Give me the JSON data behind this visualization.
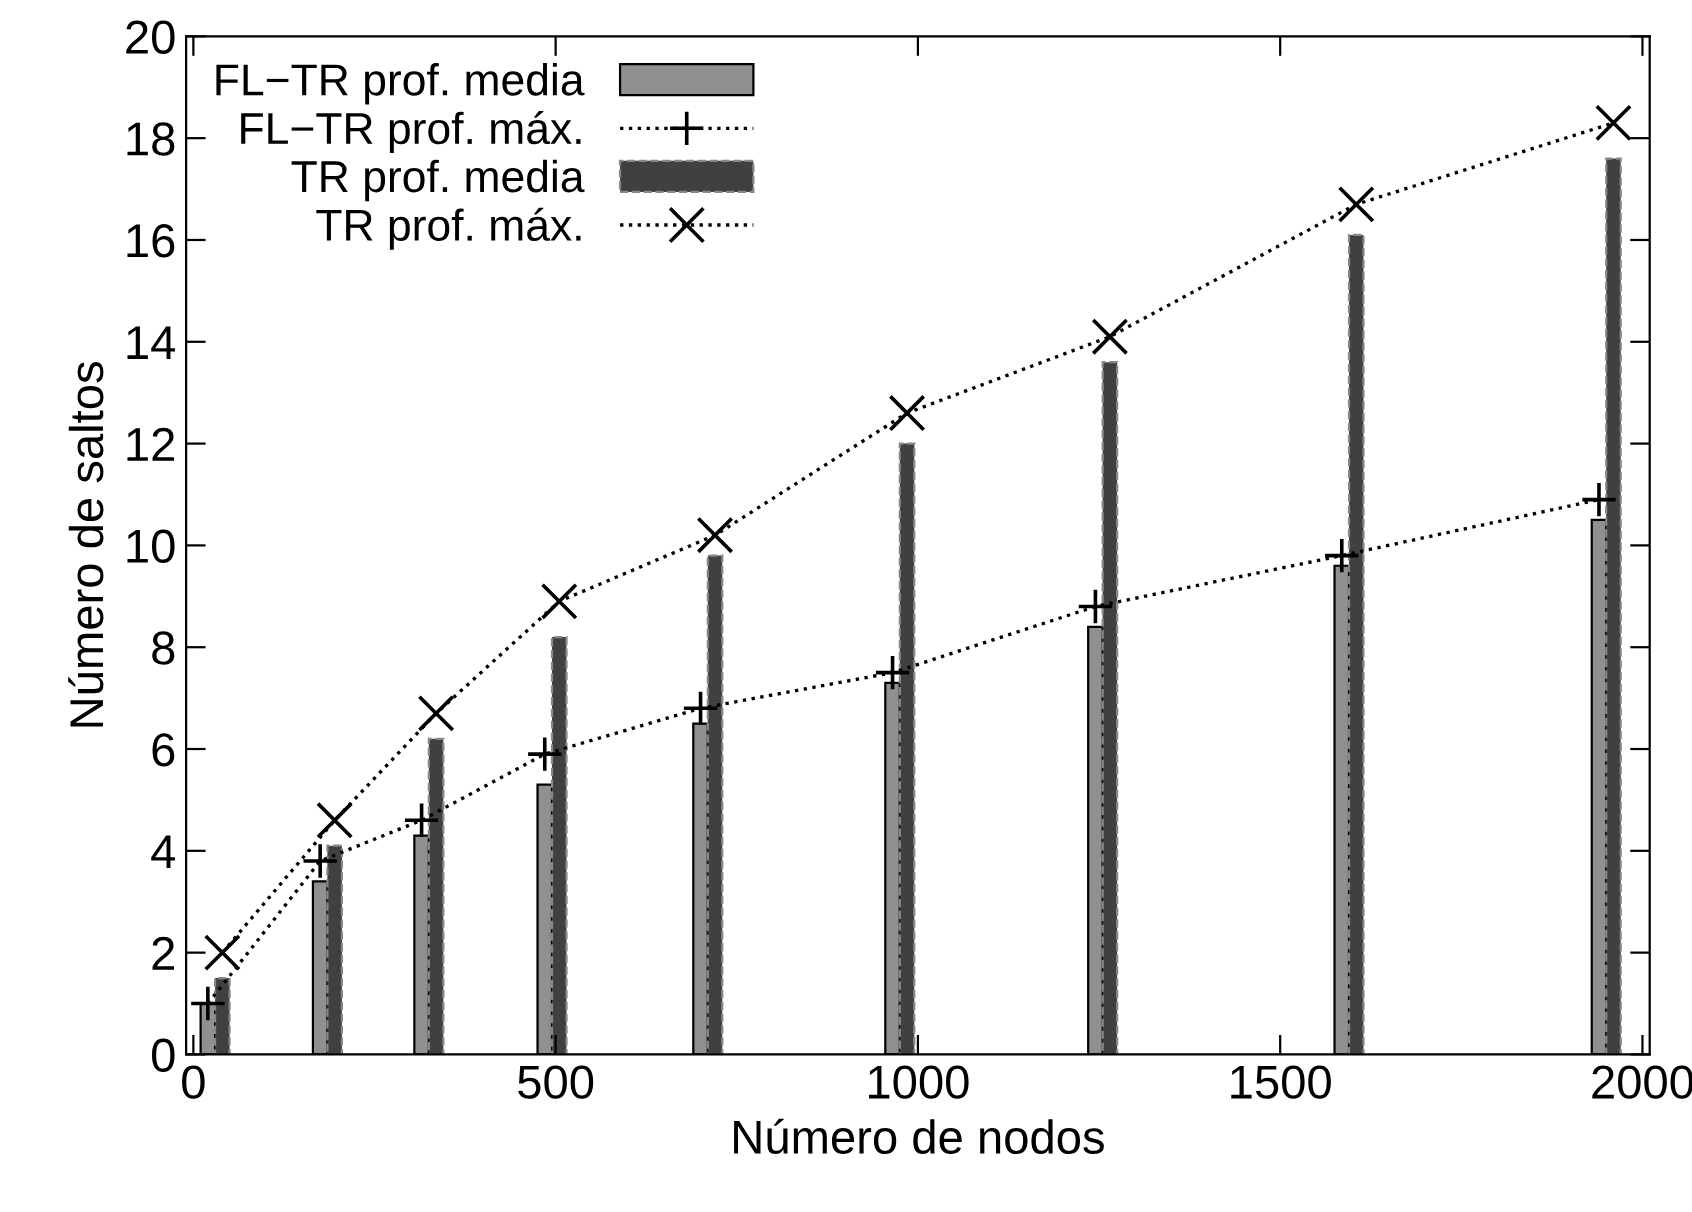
{
  "chart_data": {
    "type": "bar",
    "xlabel": "Número de nodos",
    "ylabel": "Número de saltos",
    "xlim": [
      -10,
      2010
    ],
    "ylim": [
      0,
      20
    ],
    "xticks": [
      0,
      500,
      1000,
      1500,
      2000
    ],
    "yticks": [
      0,
      2,
      4,
      6,
      8,
      10,
      12,
      14,
      16,
      18,
      20
    ],
    "grid": false,
    "legend": "top left",
    "series": [
      {
        "name": "FL−TR prof. media",
        "color": "#909090",
        "x": [
          20,
          175,
          315,
          485,
          700,
          965,
          1245,
          1585,
          1940
        ],
        "values": [
          1.0,
          3.4,
          4.3,
          5.3,
          6.5,
          7.3,
          8.4,
          9.6,
          10.5
        ]
      },
      {
        "name": "FL−TR prof. máx.",
        "type": "line",
        "color": "#000000",
        "marker": "cross",
        "line_style": "dotted",
        "x": [
          20,
          175,
          315,
          485,
          700,
          965,
          1245,
          1585,
          1940
        ],
        "values": [
          1.0,
          3.8,
          4.6,
          5.9,
          6.8,
          7.5,
          8.8,
          9.8,
          10.9
        ]
      },
      {
        "name": "TR prof. media",
        "color": "#404040",
        "x": [
          40,
          195,
          335,
          505,
          720,
          985,
          1265,
          1605,
          1960
        ],
        "values": [
          1.5,
          4.1,
          6.2,
          8.2,
          9.8,
          12.0,
          13.6,
          16.1,
          17.6
        ]
      },
      {
        "name": "TR prof. máx.",
        "type": "line",
        "color": "#000000",
        "marker": "x",
        "line_style": "dotted",
        "x": [
          40,
          195,
          335,
          505,
          720,
          985,
          1265,
          1605,
          1960
        ],
        "values": [
          2.0,
          4.6,
          6.7,
          8.9,
          10.2,
          12.6,
          14.1,
          16.7,
          18.3
        ]
      }
    ]
  }
}
